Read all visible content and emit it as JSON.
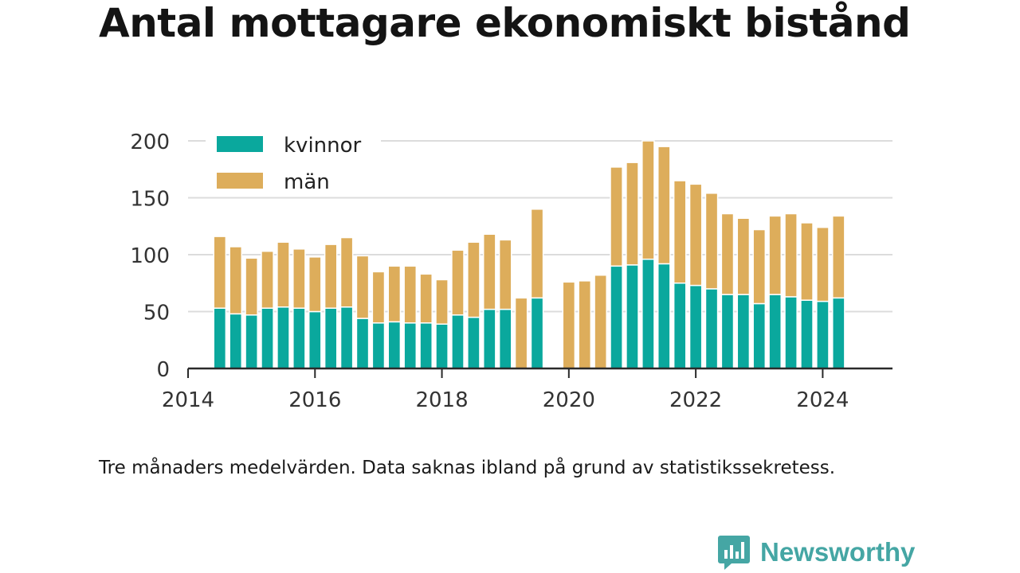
{
  "title": "Antal mottagare ekonomiskt bistånd",
  "caption": "Tre månaders medelvärden. Data saknas ibland på grund av statistikssekretess.",
  "brand": {
    "name": "Newsworthy",
    "logo_icon": "newsworthy-bar-chart-logo",
    "color": "#45a6a4"
  },
  "chart_data": {
    "type": "bar",
    "stacked": true,
    "title": "Antal mottagare ekonomiskt bistånd",
    "xlabel": "",
    "ylabel": "",
    "x_ticks": [
      2014,
      2016,
      2018,
      2020,
      2022,
      2024
    ],
    "y_ticks": [
      0,
      50,
      100,
      150,
      200
    ],
    "ylim": [
      0,
      200
    ],
    "xlim": [
      2014.0,
      2025.1
    ],
    "grid": true,
    "legend": {
      "position": "top-left",
      "entries": [
        "kvinnor",
        "män"
      ]
    },
    "x": [
      2014.5,
      2014.75,
      2015.0,
      2015.25,
      2015.5,
      2015.75,
      2016.0,
      2016.25,
      2016.5,
      2016.75,
      2017.0,
      2017.25,
      2017.5,
      2017.75,
      2018.0,
      2018.25,
      2018.5,
      2018.75,
      2019.0,
      2019.25,
      2019.5,
      2019.75,
      2020.0,
      2020.25,
      2020.5,
      2020.75,
      2021.0,
      2021.25,
      2021.5,
      2021.75,
      2022.0,
      2022.25,
      2022.5,
      2022.75,
      2023.0,
      2023.25,
      2023.5,
      2023.75,
      2024.0,
      2024.25
    ],
    "series": [
      {
        "name": "kvinnor",
        "color": "#0aa89d",
        "values": [
          53,
          48,
          47,
          53,
          54,
          53,
          50,
          53,
          54,
          44,
          40,
          41,
          40,
          40,
          39,
          47,
          45,
          52,
          52,
          null,
          62,
          null,
          null,
          null,
          null,
          90,
          91,
          96,
          92,
          75,
          73,
          70,
          65,
          65,
          57,
          65,
          63,
          60,
          59,
          62
        ]
      },
      {
        "name": "män",
        "color": "#ddad5b",
        "values": [
          63,
          59,
          50,
          50,
          57,
          52,
          48,
          56,
          61,
          55,
          45,
          49,
          50,
          43,
          39,
          57,
          66,
          66,
          61,
          62,
          78,
          null,
          76,
          77,
          82,
          87,
          90,
          104,
          103,
          90,
          89,
          84,
          71,
          67,
          65,
          69,
          73,
          68,
          65,
          72
        ]
      }
    ]
  }
}
